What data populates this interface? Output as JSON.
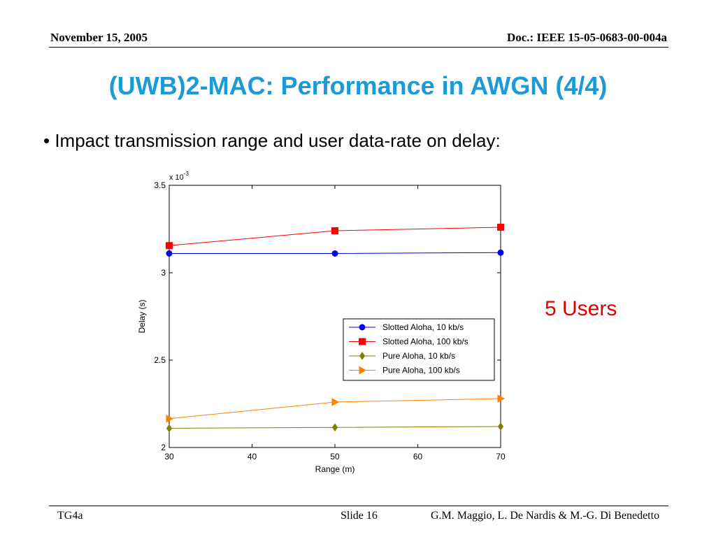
{
  "header": {
    "date": "November 15, 2005",
    "doc": "Doc.: IEEE 15-05-0683-00-004a"
  },
  "title": "(UWB)2-MAC: Performance in AWGN  (4/4)",
  "bullet": "• Impact transmission range and user data-rate on delay:",
  "side_note": "5 Users",
  "footer": {
    "left": "TG4a",
    "slide": "Slide 16",
    "authors": "G.M. Maggio, L. De Nardis & M.-G. Di Benedetto"
  },
  "chart_data": {
    "type": "line",
    "xlabel": "Range (m)",
    "ylabel": "Delay (s)",
    "y_multiplier_label": "x 10",
    "y_multiplier_exp": "-3",
    "xlim": [
      30,
      70
    ],
    "ylim": [
      2,
      3.5
    ],
    "xticks": [
      30,
      40,
      50,
      60,
      70
    ],
    "yticks": [
      2,
      2.5,
      3,
      3.5
    ],
    "ytick_labels": [
      "2",
      "2.5",
      "3",
      "3.5"
    ],
    "legend_position": "center-right",
    "grid": false,
    "series": [
      {
        "name": "Slotted Aloha, 10 kb/s",
        "color": "#0000ff",
        "marker": "circle",
        "x": [
          30,
          50,
          70
        ],
        "y": [
          3.11,
          3.11,
          3.115
        ]
      },
      {
        "name": "Slotted Aloha, 100 kb/s",
        "color": "#ff0000",
        "marker": "square",
        "x": [
          30,
          50,
          70
        ],
        "y": [
          3.155,
          3.24,
          3.26
        ]
      },
      {
        "name": "Pure Aloha, 10 kb/s",
        "color": "#808000",
        "marker": "diamond",
        "x": [
          30,
          50,
          70
        ],
        "y": [
          2.11,
          2.115,
          2.12
        ]
      },
      {
        "name": "Pure Aloha, 100 kb/s",
        "color": "#ff8000",
        "marker": "triangle-right",
        "x": [
          30,
          50,
          70
        ],
        "y": [
          2.165,
          2.26,
          2.28
        ]
      }
    ]
  }
}
